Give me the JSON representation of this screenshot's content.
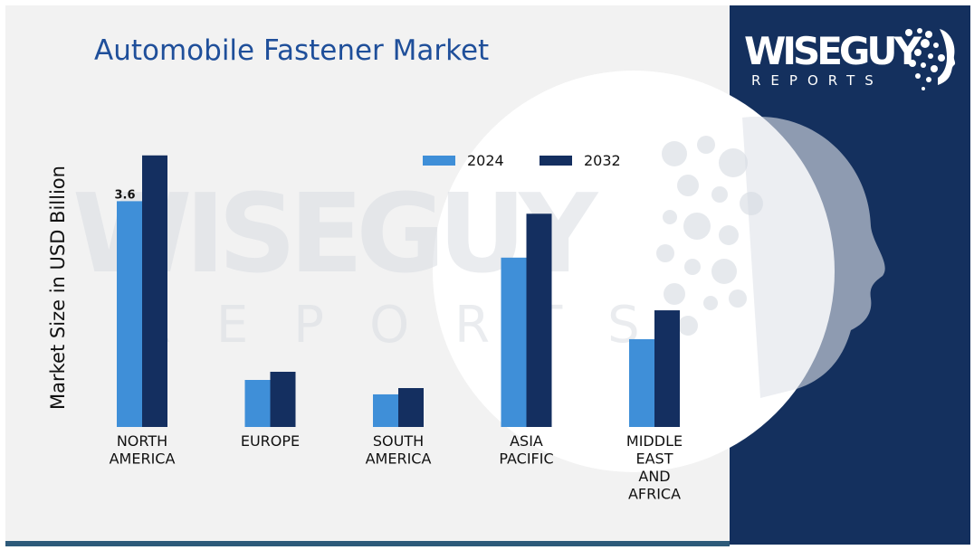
{
  "colors": {
    "series_2024": "#3f8fd8",
    "series_2032": "#142f60",
    "title": "#1f4f9a",
    "right_panel": "#14305e",
    "panel_background": "#f2f2f2"
  },
  "logo": {
    "main_text": "WISEGUY",
    "sub_text": "REPORTS"
  },
  "chart_data": {
    "type": "bar",
    "title": "Automobile Fastener Market",
    "ylabel": "Market Size in USD Billion",
    "xlabel": "",
    "categories": [
      [
        "NORTH",
        "AMERICA"
      ],
      [
        "EUROPE"
      ],
      [
        "SOUTH",
        "AMERICA"
      ],
      [
        "ASIA",
        "PACIFIC"
      ],
      [
        "MIDDLE",
        "EAST",
        "AND",
        "AFRICA"
      ]
    ],
    "series": [
      {
        "name": "2024",
        "values": [
          3.6,
          0.75,
          0.52,
          2.7,
          1.4
        ]
      },
      {
        "name": "2032",
        "values": [
          4.33,
          0.88,
          0.62,
          3.4,
          1.86
        ]
      }
    ],
    "data_labels": [
      {
        "series": 0,
        "category": 0,
        "text": "3.6"
      }
    ],
    "ylim": [
      0,
      4.5
    ],
    "grid": false,
    "legend_position": "top-center"
  }
}
